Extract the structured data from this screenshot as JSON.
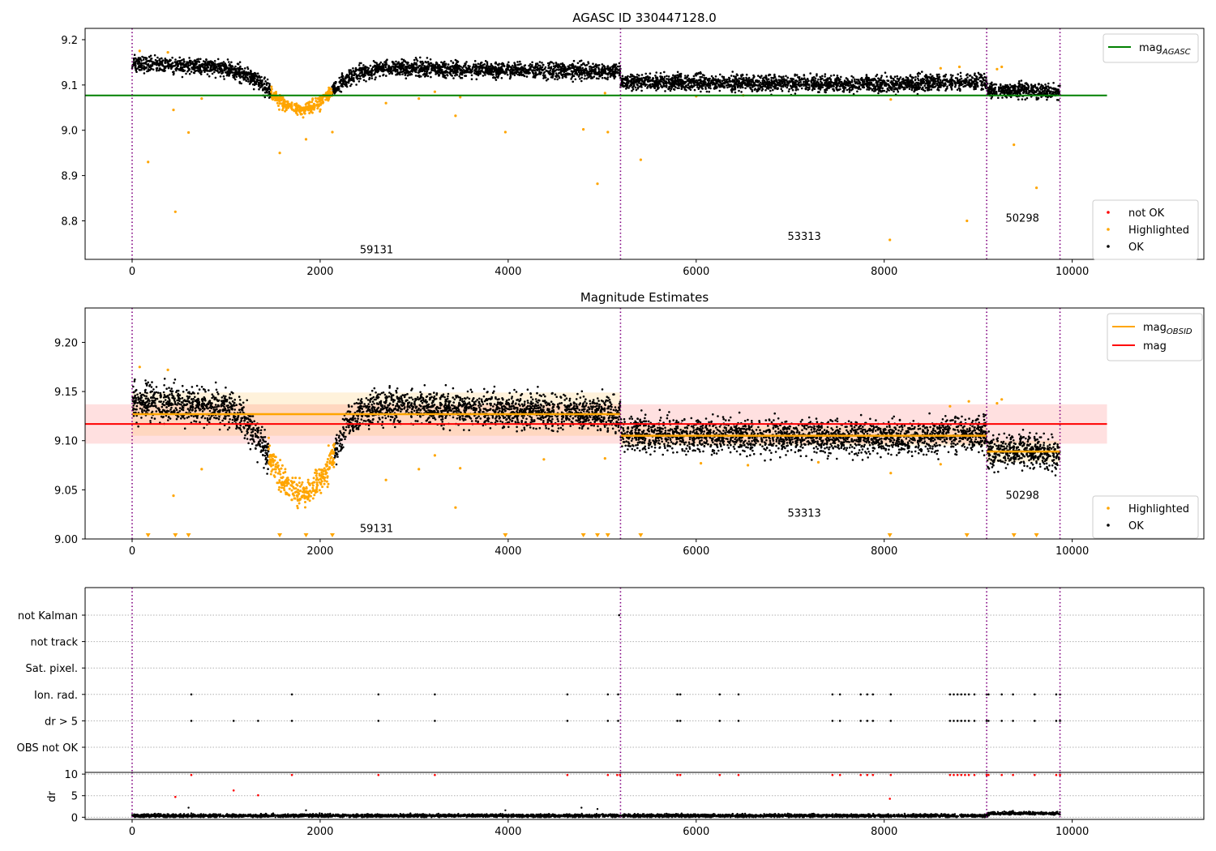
{
  "chart_data": [
    {
      "type": "scatter",
      "title": "AGASC ID 330447128.0",
      "xlabel": "",
      "ylabel": "",
      "xlim": [
        -500,
        11400
      ],
      "ylim": [
        8.715,
        9.225
      ],
      "xticks": [
        0,
        2000,
        4000,
        6000,
        8000,
        10000
      ],
      "yticks": [
        8.8,
        8.9,
        9.0,
        9.1,
        9.2
      ],
      "ytick_labels": [
        "8.8",
        "8.9",
        "9.0",
        "9.1",
        "9.2"
      ],
      "observation_boundaries": [
        0,
        5195,
        9090,
        9870
      ],
      "observation_labels": [
        {
          "text": "59131",
          "x": 2600,
          "y": 8.737
        },
        {
          "text": "53313",
          "x": 7150,
          "y": 8.767
        },
        {
          "text": "50298",
          "x": 9470,
          "y": 8.807
        }
      ],
      "reference_lines": [
        {
          "name": "mag",
          "subscript": "AGASC",
          "value": 9.077,
          "x_range": [
            -500,
            10370
          ],
          "color": "#008000"
        }
      ],
      "legend_lines": {
        "position": "top-right",
        "entries": [
          {
            "label": "mag",
            "subscript": "AGASC",
            "color": "#008000"
          }
        ]
      },
      "legend_points": {
        "position": "lower-right",
        "entries": [
          {
            "label": "not OK",
            "color": "#ff0000"
          },
          {
            "label": "Highlighted",
            "color": "#ffa500"
          },
          {
            "label": "OK",
            "color": "#000000"
          }
        ]
      },
      "series": [
        {
          "name": "OK",
          "color": "#000000",
          "segments": [
            {
              "x": [
                0,
                1000,
                1300,
                1450,
                1600,
                1800,
                2000,
                2150,
                2300,
                2600,
                3000,
                4000,
                5195
              ],
              "y": [
                9.147,
                9.138,
                9.115,
                9.09,
                9.06,
                9.045,
                9.06,
                9.09,
                9.118,
                9.135,
                9.137,
                9.133,
                9.13
              ]
            },
            {
              "x": [
                5195,
                6000,
                7000,
                8000,
                9090
              ],
              "y": [
                9.107,
                9.105,
                9.103,
                9.102,
                9.108
              ]
            },
            {
              "x": [
                9090,
                9500,
                9870
              ],
              "y": [
                9.088,
                9.09,
                9.085
              ]
            }
          ]
        },
        {
          "name": "Highlighted",
          "color": "#ffa500",
          "dip_range": [
            1450,
            2180
          ],
          "outliers": [
            {
              "x": 80,
              "y": 9.175
            },
            {
              "x": 170,
              "y": 8.93
            },
            {
              "x": 380,
              "y": 9.172
            },
            {
              "x": 440,
              "y": 9.045
            },
            {
              "x": 460,
              "y": 8.82
            },
            {
              "x": 600,
              "y": 8.995
            },
            {
              "x": 740,
              "y": 9.07
            },
            {
              "x": 1570,
              "y": 8.95
            },
            {
              "x": 1850,
              "y": 8.98
            },
            {
              "x": 2130,
              "y": 8.996
            },
            {
              "x": 2700,
              "y": 9.06
            },
            {
              "x": 3050,
              "y": 9.07
            },
            {
              "x": 3220,
              "y": 9.085
            },
            {
              "x": 3440,
              "y": 9.032
            },
            {
              "x": 3490,
              "y": 9.073
            },
            {
              "x": 3970,
              "y": 8.996
            },
            {
              "x": 4800,
              "y": 9.002
            },
            {
              "x": 4950,
              "y": 8.882
            },
            {
              "x": 5030,
              "y": 9.082
            },
            {
              "x": 5060,
              "y": 8.996
            },
            {
              "x": 5410,
              "y": 8.935
            },
            {
              "x": 8060,
              "y": 8.758
            },
            {
              "x": 8070,
              "y": 9.068
            },
            {
              "x": 8880,
              "y": 8.8
            },
            {
              "x": 9380,
              "y": 8.968
            },
            {
              "x": 9620,
              "y": 8.873
            },
            {
              "x": 9250,
              "y": 9.14
            },
            {
              "x": 9200,
              "y": 9.135
            },
            {
              "x": 8600,
              "y": 9.137
            },
            {
              "x": 8800,
              "y": 9.14
            },
            {
              "x": 6000,
              "y": 9.075
            },
            {
              "x": 6500,
              "y": 9.077
            }
          ]
        }
      ]
    },
    {
      "type": "scatter",
      "title": "Magnitude Estimates",
      "xlabel": "",
      "ylabel": "",
      "xlim": [
        -500,
        11400
      ],
      "ylim": [
        9.0,
        9.235
      ],
      "xticks": [
        0,
        2000,
        4000,
        6000,
        8000,
        10000
      ],
      "yticks": [
        9.0,
        9.05,
        9.1,
        9.15,
        9.2
      ],
      "ytick_labels": [
        "9.00",
        "9.05",
        "9.10",
        "9.15",
        "9.20"
      ],
      "observation_boundaries": [
        0,
        5195,
        9090,
        9870
      ],
      "observation_labels": [
        {
          "text": "59131",
          "x": 2600,
          "y": 9.011
        },
        {
          "text": "53313",
          "x": 7150,
          "y": 9.027
        },
        {
          "text": "50298",
          "x": 9470,
          "y": 9.045
        }
      ],
      "mag_obsid": [
        {
          "x_range": [
            0,
            5195
          ],
          "value": 9.127,
          "band": [
            9.105,
            9.149
          ]
        },
        {
          "x_range": [
            5195,
            9090
          ],
          "value": 9.105,
          "band": [
            9.095,
            9.115
          ]
        },
        {
          "x_range": [
            9090,
            9870
          ],
          "value": 9.089,
          "band": [
            9.078,
            9.1
          ]
        }
      ],
      "mag": {
        "value": 9.117,
        "x_range": [
          -500,
          10370
        ],
        "band": [
          9.097,
          9.137
        ]
      },
      "legend_lines": {
        "position": "top-right",
        "entries": [
          {
            "label": "mag",
            "subscript": "OBSID",
            "color": "#ffa500"
          },
          {
            "label": "mag",
            "subscript": "",
            "color": "#ff0000"
          }
        ]
      },
      "legend_points": {
        "position": "lower-right",
        "entries": [
          {
            "label": "Highlighted",
            "color": "#ffa500"
          },
          {
            "label": "OK",
            "color": "#000000"
          }
        ]
      },
      "below_range_markers_x": [
        170,
        460,
        600,
        1570,
        1850,
        2130,
        3970,
        4800,
        4950,
        5060,
        5410,
        8060,
        8880,
        9380,
        9620
      ],
      "series": [
        {
          "name": "OK",
          "color": "#000000",
          "segments": [
            {
              "x": [
                0,
                1000,
                1200,
                1350,
                1450,
                1600,
                1800,
                2000,
                2150,
                2300,
                2600,
                3000,
                4000,
                5195
              ],
              "y": [
                9.14,
                9.134,
                9.12,
                9.1,
                9.085,
                9.06,
                9.045,
                9.06,
                9.085,
                9.12,
                9.135,
                9.135,
                9.13,
                9.128
              ]
            },
            {
              "x": [
                5195,
                6000,
                7000,
                8000,
                9090
              ],
              "y": [
                9.107,
                9.105,
                9.103,
                9.102,
                9.108
              ]
            },
            {
              "x": [
                9090,
                9500,
                9870
              ],
              "y": [
                9.088,
                9.09,
                9.085
              ]
            }
          ]
        },
        {
          "name": "Highlighted",
          "color": "#ffa500",
          "dip_range": [
            1450,
            2180
          ],
          "outliers": [
            {
              "x": 80,
              "y": 9.175
            },
            {
              "x": 380,
              "y": 9.172
            },
            {
              "x": 440,
              "y": 9.044
            },
            {
              "x": 740,
              "y": 9.071
            },
            {
              "x": 2700,
              "y": 9.06
            },
            {
              "x": 3050,
              "y": 9.071
            },
            {
              "x": 3220,
              "y": 9.085
            },
            {
              "x": 3440,
              "y": 9.032
            },
            {
              "x": 3490,
              "y": 9.072
            },
            {
              "x": 4380,
              "y": 9.081
            },
            {
              "x": 5030,
              "y": 9.082
            },
            {
              "x": 6050,
              "y": 9.077
            },
            {
              "x": 6550,
              "y": 9.075
            },
            {
              "x": 7300,
              "y": 9.078
            },
            {
              "x": 8070,
              "y": 9.067
            },
            {
              "x": 8600,
              "y": 9.076
            },
            {
              "x": 8700,
              "y": 9.135
            },
            {
              "x": 8900,
              "y": 9.14
            },
            {
              "x": 9200,
              "y": 9.138
            },
            {
              "x": 9250,
              "y": 9.142
            }
          ]
        }
      ]
    },
    {
      "type": "scatter",
      "title": "",
      "xlabel": "",
      "ylabel": "",
      "xlim": [
        -500,
        11400
      ],
      "categories": [
        "not Kalman",
        "not track",
        "Sat. pixel.",
        "Ion. rad.",
        "dr > 5",
        "OBS not OK"
      ],
      "observation_boundaries": [
        0,
        5195,
        9090,
        9870
      ],
      "flag_events": {
        "not Kalman": [
          5180
        ],
        "Ion. rad.": [
          630,
          1700,
          2620,
          3220,
          4630,
          5060,
          5170,
          5800,
          5830,
          6250,
          6450,
          7450,
          7530,
          7750,
          7820,
          7880,
          8070,
          8700,
          8740,
          8780,
          8820,
          8860,
          8900,
          8960,
          9090,
          9110,
          9250,
          9370,
          9600,
          9830,
          9870
        ],
        "dr > 5": [
          630,
          1080,
          1340,
          1700,
          2620,
          3220,
          4630,
          5060,
          5170,
          5800,
          5830,
          6250,
          6450,
          7450,
          7530,
          7750,
          7820,
          7880,
          8070,
          8700,
          8740,
          8780,
          8820,
          8860,
          8900,
          8960,
          9090,
          9110,
          9250,
          9370,
          9600,
          9830,
          9870
        ]
      }
    },
    {
      "type": "scatter",
      "title": "",
      "xlabel": "",
      "ylabel": "dr",
      "xlim": [
        -500,
        11400
      ],
      "ylim": [
        -0.5,
        10.4
      ],
      "xticks": [
        0,
        2000,
        4000,
        6000,
        8000,
        10000
      ],
      "yticks": [
        0,
        5,
        10
      ],
      "observation_boundaries": [
        0,
        5195,
        9090,
        9870
      ],
      "series": [
        {
          "name": "dr",
          "color": "#000000",
          "segments": [
            {
              "x": [
                0,
                9100
              ],
              "y": [
                0.35,
                0.35
              ]
            },
            {
              "x": [
                9100,
                9870
              ],
              "y": [
                0.9,
                0.9
              ]
            }
          ],
          "scatter_points": [
            {
              "x": 600,
              "y": 2.2
            },
            {
              "x": 4780,
              "y": 2.2
            },
            {
              "x": 4950,
              "y": 1.9
            },
            {
              "x": 1850,
              "y": 1.6
            },
            {
              "x": 3970,
              "y": 1.6
            }
          ]
        },
        {
          "name": "dr > 5",
          "color": "#ff0000",
          "points": [
            {
              "x": 460,
              "y": 4.7
            },
            {
              "x": 1080,
              "y": 6.2
            },
            {
              "x": 1340,
              "y": 5.1
            },
            {
              "x": 8060,
              "y": 4.3
            },
            {
              "x": 630,
              "y": 9.8
            },
            {
              "x": 1700,
              "y": 9.8
            },
            {
              "x": 2620,
              "y": 9.8
            },
            {
              "x": 3220,
              "y": 9.8
            },
            {
              "x": 4630,
              "y": 9.8
            },
            {
              "x": 5060,
              "y": 9.8
            },
            {
              "x": 5160,
              "y": 9.8
            },
            {
              "x": 5190,
              "y": 9.8
            },
            {
              "x": 5800,
              "y": 9.8
            },
            {
              "x": 5830,
              "y": 9.8
            },
            {
              "x": 6250,
              "y": 9.8
            },
            {
              "x": 6450,
              "y": 9.8
            },
            {
              "x": 7450,
              "y": 9.8
            },
            {
              "x": 7530,
              "y": 9.8
            },
            {
              "x": 7750,
              "y": 9.8
            },
            {
              "x": 7820,
              "y": 9.8
            },
            {
              "x": 7880,
              "y": 9.8
            },
            {
              "x": 8070,
              "y": 9.8
            },
            {
              "x": 8700,
              "y": 9.8
            },
            {
              "x": 8740,
              "y": 9.8
            },
            {
              "x": 8780,
              "y": 9.8
            },
            {
              "x": 8820,
              "y": 9.8
            },
            {
              "x": 8860,
              "y": 9.8
            },
            {
              "x": 8900,
              "y": 9.8
            },
            {
              "x": 8960,
              "y": 9.8
            },
            {
              "x": 9090,
              "y": 9.8
            },
            {
              "x": 9110,
              "y": 9.8
            },
            {
              "x": 9250,
              "y": 9.8
            },
            {
              "x": 9370,
              "y": 9.8
            },
            {
              "x": 9600,
              "y": 9.8
            },
            {
              "x": 9830,
              "y": 9.8
            },
            {
              "x": 9870,
              "y": 9.8
            }
          ]
        }
      ]
    }
  ]
}
